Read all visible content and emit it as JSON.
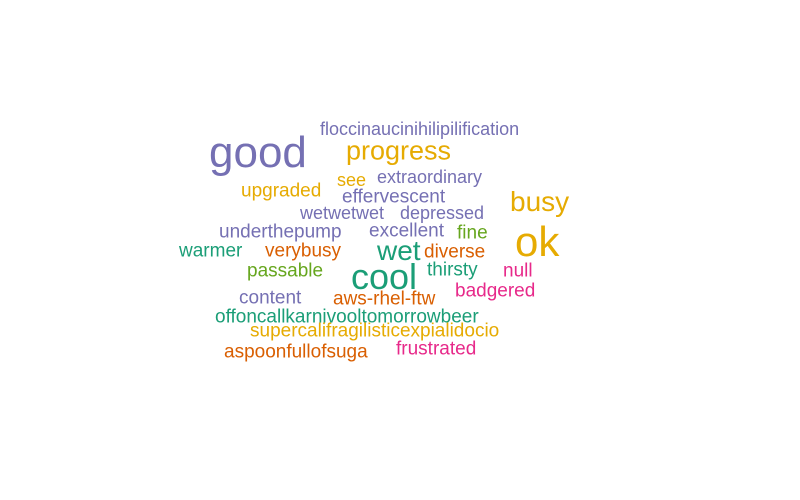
{
  "palette": {
    "teal": "#1b9e77",
    "orange": "#d95f02",
    "purple": "#7570b3",
    "magenta": "#e7298a",
    "green": "#66a61e",
    "gold": "#e6ab02"
  },
  "words": [
    {
      "id": "floccinaucinihilipilification",
      "text": "floccinaucinihilipilification",
      "weight": 2,
      "color": "purple"
    },
    {
      "id": "good",
      "text": "good",
      "weight": 9,
      "color": "purple"
    },
    {
      "id": "progress",
      "text": "progress",
      "weight": 5,
      "color": "gold"
    },
    {
      "id": "extraordinary",
      "text": "extraordinary",
      "weight": 2,
      "color": "purple"
    },
    {
      "id": "see",
      "text": "see",
      "weight": 2,
      "color": "gold"
    },
    {
      "id": "upgraded",
      "text": "upgraded",
      "weight": 2,
      "color": "gold"
    },
    {
      "id": "effervescent",
      "text": "effervescent",
      "weight": 2,
      "color": "purple"
    },
    {
      "id": "busy",
      "text": "busy",
      "weight": 5,
      "color": "gold"
    },
    {
      "id": "wetwetwet",
      "text": "wetwetwet",
      "weight": 2,
      "color": "purple"
    },
    {
      "id": "depressed",
      "text": "depressed",
      "weight": 2,
      "color": "purple"
    },
    {
      "id": "underthepump",
      "text": "underthepump",
      "weight": 2,
      "color": "purple"
    },
    {
      "id": "excellent",
      "text": "excellent",
      "weight": 2,
      "color": "purple"
    },
    {
      "id": "fine",
      "text": "fine",
      "weight": 2,
      "color": "green"
    },
    {
      "id": "ok",
      "text": "ok",
      "weight": 10,
      "color": "gold"
    },
    {
      "id": "warmer",
      "text": "warmer",
      "weight": 2,
      "color": "teal"
    },
    {
      "id": "verybusy",
      "text": "verybusy",
      "weight": 2,
      "color": "orange"
    },
    {
      "id": "wet",
      "text": "wet",
      "weight": 5,
      "color": "teal"
    },
    {
      "id": "diverse",
      "text": "diverse",
      "weight": 2,
      "color": "orange"
    },
    {
      "id": "passable",
      "text": "passable",
      "weight": 2,
      "color": "green"
    },
    {
      "id": "cool",
      "text": "cool",
      "weight": 7,
      "color": "teal"
    },
    {
      "id": "thirsty",
      "text": "thirsty",
      "weight": 2,
      "color": "teal"
    },
    {
      "id": "null",
      "text": "null",
      "weight": 2,
      "color": "magenta"
    },
    {
      "id": "badgered",
      "text": "badgered",
      "weight": 2,
      "color": "magenta"
    },
    {
      "id": "content",
      "text": "content",
      "weight": 2,
      "color": "purple"
    },
    {
      "id": "aws-rhel-ftw",
      "text": "aws-rhel-ftw",
      "weight": 2,
      "color": "orange"
    },
    {
      "id": "offoncallkarnivooltomorrowbeer",
      "text": "offoncallkarnivooltomorrowbeer",
      "weight": 2,
      "color": "teal"
    },
    {
      "id": "supercalifragilisticexpialidocio",
      "text": "supercalifragilisticexpialidocio",
      "weight": 2,
      "color": "gold"
    },
    {
      "id": "aspoonfullofsuga",
      "text": "aspoonfullofsuga",
      "weight": 2,
      "color": "orange"
    },
    {
      "id": "frustrated",
      "text": "frustrated",
      "weight": 2,
      "color": "magenta"
    }
  ]
}
